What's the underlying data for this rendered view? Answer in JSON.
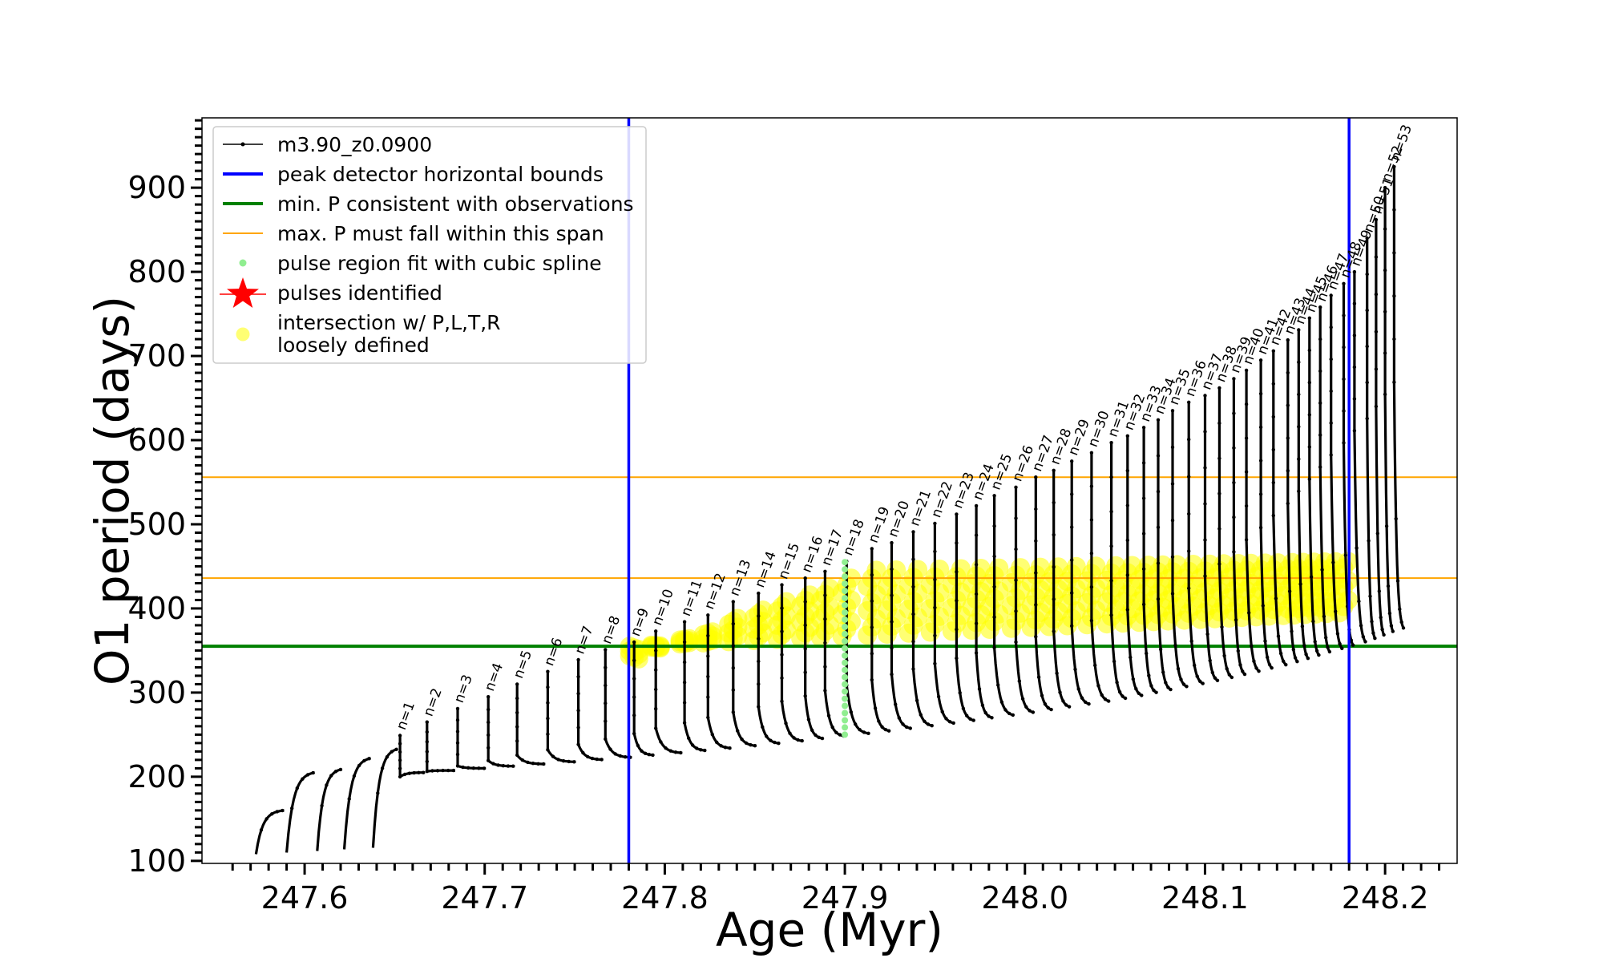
{
  "chart_data": {
    "type": "line",
    "xlabel": "Age (Myr)",
    "ylabel": "O1 period (days)",
    "xlim": [
      247.543,
      248.24
    ],
    "ylim": [
      97,
      983
    ],
    "xticks": [
      247.6,
      247.7,
      247.8,
      247.9,
      248.0,
      248.1,
      248.2
    ],
    "xtick_labels": [
      "247.6",
      "247.7",
      "247.8",
      "247.9",
      "248.0",
      "248.1",
      "248.2"
    ],
    "yticks": [
      100,
      200,
      300,
      400,
      500,
      600,
      700,
      800,
      900
    ],
    "ytick_labels": [
      "100",
      "200",
      "300",
      "400",
      "500",
      "600",
      "700",
      "800",
      "900"
    ],
    "legend_position": "upper-left",
    "colors": {
      "model": "#000000",
      "peak_bounds": "#0000ff",
      "min_period": "#008000",
      "max_span": "#ffa500",
      "spline_fit": "#90ee90",
      "pulses": "#ff0000",
      "intersection": "#ffff00"
    },
    "legend": [
      {
        "key": "model",
        "label": "m3.90_z0.0900",
        "marker": "line-dot"
      },
      {
        "key": "peak_bounds",
        "label": "peak detector horizontal bounds",
        "marker": "line-thick"
      },
      {
        "key": "min_period",
        "label": "min. P consistent with observations",
        "marker": "line-thick"
      },
      {
        "key": "max_span",
        "label": "max. P must fall within this span",
        "marker": "line-thin"
      },
      {
        "key": "spline_fit",
        "label": "pulse region fit with cubic spline",
        "marker": "dot"
      },
      {
        "key": "pulses",
        "label": "pulses identified",
        "marker": "star"
      },
      {
        "key": "intersection",
        "label": "intersection w/ P,L,T,R",
        "label2": "loosely defined",
        "marker": "circle"
      }
    ],
    "series_name": "m3.90_z0.0900",
    "peak_detector_bounds_x": [
      247.78,
      248.18
    ],
    "min_period_y": 355,
    "max_period_span_y": [
      436,
      556
    ],
    "pulses": [
      {
        "n": 1,
        "age": 247.653,
        "peak": 249
      },
      {
        "n": 2,
        "age": 247.668,
        "peak": 265
      },
      {
        "n": 3,
        "age": 247.685,
        "peak": 281
      },
      {
        "n": 4,
        "age": 247.702,
        "peak": 295
      },
      {
        "n": 5,
        "age": 247.718,
        "peak": 310
      },
      {
        "n": 6,
        "age": 247.735,
        "peak": 325
      },
      {
        "n": 7,
        "age": 247.752,
        "peak": 339
      },
      {
        "n": 8,
        "age": 247.767,
        "peak": 351
      },
      {
        "n": 9,
        "age": 247.783,
        "peak": 360
      },
      {
        "n": 10,
        "age": 247.795,
        "peak": 373
      },
      {
        "n": 11,
        "age": 247.811,
        "peak": 384
      },
      {
        "n": 12,
        "age": 247.824,
        "peak": 392
      },
      {
        "n": 13,
        "age": 247.838,
        "peak": 408
      },
      {
        "n": 14,
        "age": 247.852,
        "peak": 418
      },
      {
        "n": 15,
        "age": 247.865,
        "peak": 428
      },
      {
        "n": 16,
        "age": 247.878,
        "peak": 436
      },
      {
        "n": 17,
        "age": 247.889,
        "peak": 444
      },
      {
        "n": 18,
        "age": 247.901,
        "peak": 456
      },
      {
        "n": 19,
        "age": 247.915,
        "peak": 471
      },
      {
        "n": 20,
        "age": 247.926,
        "peak": 478
      },
      {
        "n": 21,
        "age": 247.938,
        "peak": 491
      },
      {
        "n": 22,
        "age": 247.95,
        "peak": 501
      },
      {
        "n": 23,
        "age": 247.962,
        "peak": 512
      },
      {
        "n": 24,
        "age": 247.973,
        "peak": 522
      },
      {
        "n": 25,
        "age": 247.983,
        "peak": 534
      },
      {
        "n": 26,
        "age": 247.995,
        "peak": 544
      },
      {
        "n": 27,
        "age": 248.006,
        "peak": 556
      },
      {
        "n": 28,
        "age": 248.016,
        "peak": 564
      },
      {
        "n": 29,
        "age": 248.026,
        "peak": 575
      },
      {
        "n": 30,
        "age": 248.037,
        "peak": 585
      },
      {
        "n": 31,
        "age": 248.048,
        "peak": 597
      },
      {
        "n": 32,
        "age": 248.057,
        "peak": 605
      },
      {
        "n": 33,
        "age": 248.066,
        "peak": 615
      },
      {
        "n": 34,
        "age": 248.074,
        "peak": 624
      },
      {
        "n": 35,
        "age": 248.082,
        "peak": 635
      },
      {
        "n": 36,
        "age": 248.091,
        "peak": 645
      },
      {
        "n": 37,
        "age": 248.1,
        "peak": 653
      },
      {
        "n": 38,
        "age": 248.108,
        "peak": 662
      },
      {
        "n": 39,
        "age": 248.116,
        "peak": 673
      },
      {
        "n": 40,
        "age": 248.123,
        "peak": 683
      },
      {
        "n": 41,
        "age": 248.131,
        "peak": 695
      },
      {
        "n": 42,
        "age": 248.138,
        "peak": 706
      },
      {
        "n": 43,
        "age": 248.146,
        "peak": 719
      },
      {
        "n": 44,
        "age": 248.152,
        "peak": 731
      },
      {
        "n": 45,
        "age": 248.158,
        "peak": 745
      },
      {
        "n": 46,
        "age": 248.164,
        "peak": 758
      },
      {
        "n": 47,
        "age": 248.17,
        "peak": 772
      },
      {
        "n": 48,
        "age": 248.177,
        "peak": 786
      },
      {
        "n": 49,
        "age": 248.183,
        "peak": 800
      },
      {
        "n": 50,
        "age": 248.19,
        "peak": 840
      },
      {
        "n": 51,
        "age": 248.195,
        "peak": 862
      },
      {
        "n": 52,
        "age": 248.2,
        "peak": 900
      },
      {
        "n": 53,
        "age": 248.205,
        "peak": 925
      }
    ],
    "pre_pulse_cycles": [
      {
        "age": 247.573,
        "peak": 160
      },
      {
        "age": 247.59,
        "peak": 205
      },
      {
        "age": 247.607,
        "peak": 209
      },
      {
        "age": 247.622,
        "peak": 222
      },
      {
        "age": 247.638,
        "peak": 233
      }
    ],
    "spline_region": {
      "age": 247.9,
      "p_min": 250,
      "p_max": 455
    },
    "intersection_band": {
      "age_min": 247.783,
      "age_max": 248.18,
      "p_min": 355,
      "p_max": 458
    }
  }
}
